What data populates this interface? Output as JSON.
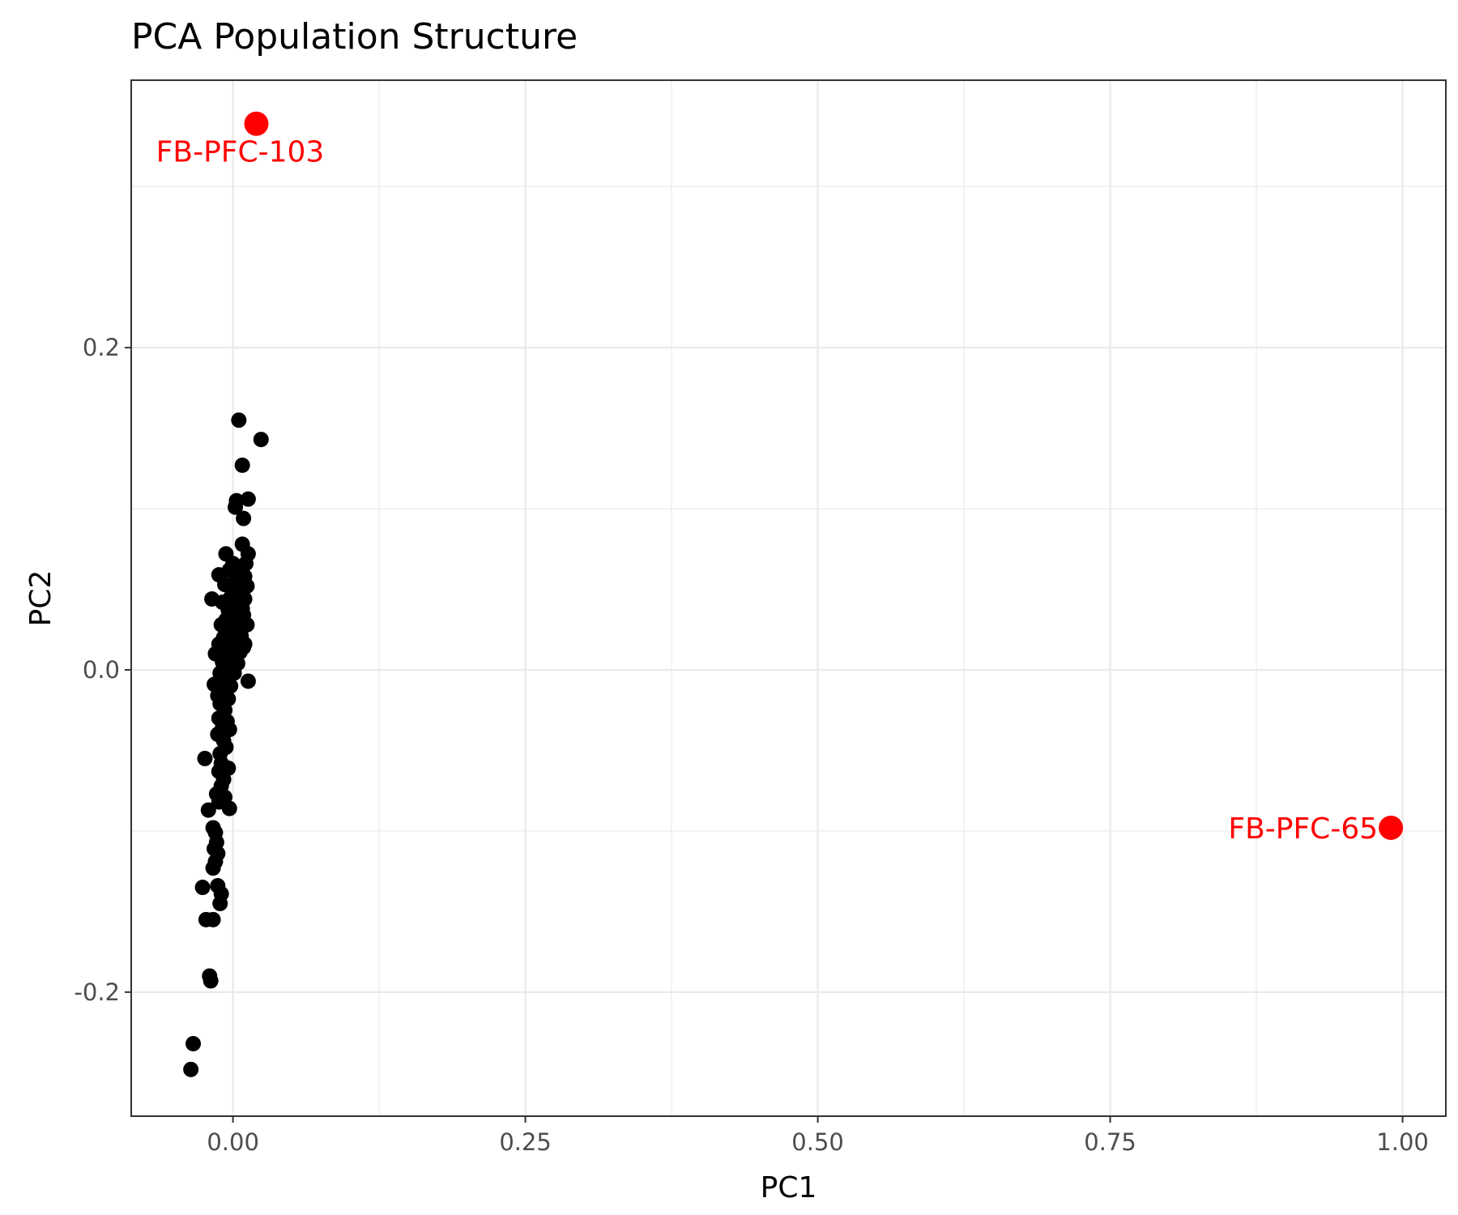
{
  "chart_data": {
    "type": "scatter",
    "title": "PCA Population Structure",
    "xlabel": "PC1",
    "ylabel": "PC2",
    "xlim": [
      -0.087,
      1.037
    ],
    "ylim": [
      -0.277,
      0.366
    ],
    "x_ticks": [
      0.0,
      0.25,
      0.5,
      0.75,
      1.0
    ],
    "x_tick_labels": [
      "0.00",
      "0.25",
      "0.50",
      "0.75",
      "1.00"
    ],
    "y_ticks": [
      -0.2,
      0.0,
      0.2
    ],
    "y_tick_labels": [
      "-0.2",
      "0.0",
      "0.2"
    ],
    "grid": true,
    "legend": "none",
    "colors": {
      "normal": "#000000",
      "highlight": "#ff0000",
      "grid": "#ebebeb",
      "panel_border": "#333333"
    },
    "series": [
      {
        "points": [
          [
            0.005,
            0.155
          ],
          [
            0.024,
            0.143
          ],
          [
            0.008,
            0.127
          ],
          [
            0.013,
            0.106
          ],
          [
            0.003,
            0.105
          ],
          [
            0.002,
            0.101
          ],
          [
            0.009,
            0.094
          ],
          [
            -0.006,
            0.072
          ],
          [
            0.008,
            0.078
          ],
          [
            0.013,
            0.072
          ],
          [
            0.011,
            0.066
          ],
          [
            0.0,
            0.066
          ],
          [
            -0.003,
            0.062
          ],
          [
            0.005,
            0.06
          ],
          [
            -0.012,
            0.059
          ],
          [
            0.01,
            0.058
          ],
          [
            0.003,
            0.056
          ],
          [
            -0.007,
            0.053
          ],
          [
            0.012,
            0.052
          ],
          [
            0.002,
            0.05
          ],
          [
            0.007,
            0.046
          ],
          [
            -0.002,
            0.045
          ],
          [
            -0.018,
            0.044
          ],
          [
            0.01,
            0.044
          ],
          [
            -0.009,
            0.042
          ],
          [
            0.004,
            0.04
          ],
          [
            0.008,
            0.038
          ],
          [
            -0.004,
            0.037
          ],
          [
            0.001,
            0.034
          ],
          [
            0.009,
            0.034
          ],
          [
            -0.006,
            0.031
          ],
          [
            0.005,
            0.03
          ],
          [
            0.012,
            0.028
          ],
          [
            -0.01,
            0.028
          ],
          [
            0.0,
            0.026
          ],
          [
            -0.003,
            0.022
          ],
          [
            0.007,
            0.021
          ],
          [
            -0.008,
            0.02
          ],
          [
            0.003,
            0.018
          ],
          [
            0.01,
            0.016
          ],
          [
            -0.012,
            0.016
          ],
          [
            -0.001,
            0.013
          ],
          [
            0.006,
            0.011
          ],
          [
            -0.005,
            0.01
          ],
          [
            0.009,
            0.014
          ],
          [
            -0.015,
            0.01
          ],
          [
            0.002,
            0.007
          ],
          [
            -0.009,
            0.005
          ],
          [
            0.004,
            0.004
          ],
          [
            -0.003,
            0.001
          ],
          [
            -0.011,
            -0.002
          ],
          [
            0.001,
            -0.002
          ],
          [
            0.013,
            -0.007
          ],
          [
            -0.006,
            -0.006
          ],
          [
            -0.016,
            -0.009
          ],
          [
            -0.002,
            -0.01
          ],
          [
            -0.009,
            -0.013
          ],
          [
            -0.013,
            -0.016
          ],
          [
            -0.004,
            -0.018
          ],
          [
            -0.011,
            -0.021
          ],
          [
            -0.007,
            -0.025
          ],
          [
            -0.012,
            -0.03
          ],
          [
            -0.005,
            -0.032
          ],
          [
            -0.009,
            -0.036
          ],
          [
            -0.003,
            -0.037
          ],
          [
            -0.013,
            -0.04
          ],
          [
            -0.008,
            -0.044
          ],
          [
            -0.006,
            -0.048
          ],
          [
            -0.011,
            -0.052
          ],
          [
            -0.024,
            -0.055
          ],
          [
            -0.01,
            -0.058
          ],
          [
            -0.004,
            -0.061
          ],
          [
            -0.012,
            -0.063
          ],
          [
            -0.008,
            -0.068
          ],
          [
            -0.01,
            -0.072
          ],
          [
            -0.014,
            -0.077
          ],
          [
            -0.007,
            -0.079
          ],
          [
            -0.012,
            -0.082
          ],
          [
            -0.003,
            -0.086
          ],
          [
            -0.021,
            -0.087
          ],
          [
            -0.017,
            -0.098
          ],
          [
            -0.015,
            -0.101
          ],
          [
            -0.014,
            -0.107
          ],
          [
            -0.016,
            -0.111
          ],
          [
            -0.013,
            -0.114
          ],
          [
            -0.015,
            -0.119
          ],
          [
            -0.017,
            -0.123
          ],
          [
            -0.013,
            -0.134
          ],
          [
            -0.026,
            -0.135
          ],
          [
            -0.01,
            -0.139
          ],
          [
            -0.011,
            -0.145
          ],
          [
            -0.023,
            -0.155
          ],
          [
            -0.017,
            -0.155
          ],
          [
            -0.02,
            -0.19
          ],
          [
            -0.019,
            -0.193
          ],
          [
            -0.034,
            -0.232
          ],
          [
            -0.036,
            -0.248
          ]
        ]
      }
    ],
    "highlighted": [
      {
        "label": "FB-PFC-103",
        "x": 0.02,
        "y": 0.339
      },
      {
        "label": "FB-PFC-65",
        "x": 0.99,
        "y": -0.098
      }
    ]
  }
}
